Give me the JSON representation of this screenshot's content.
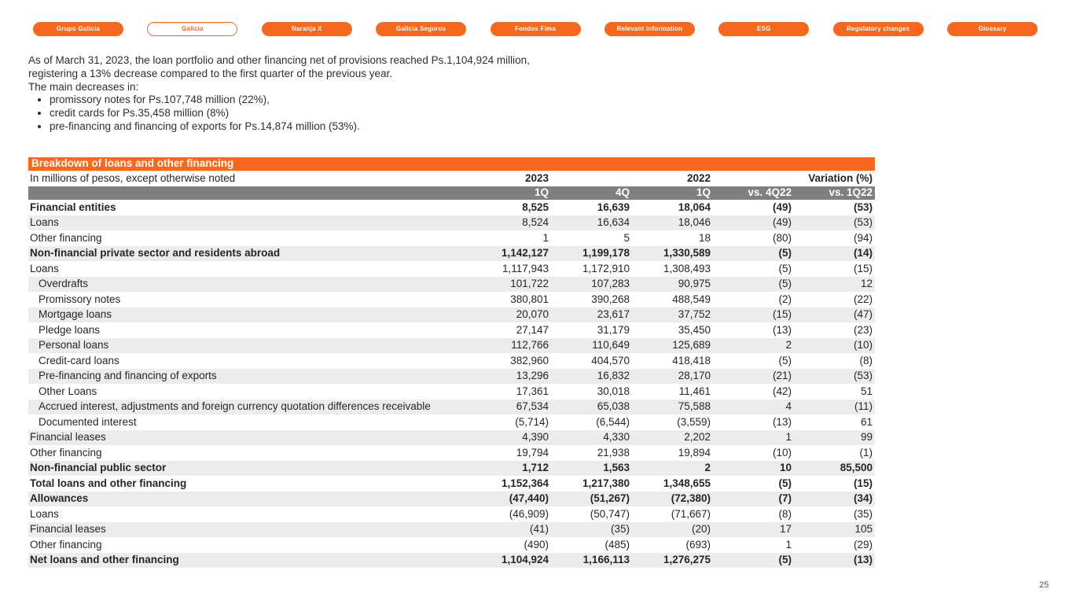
{
  "nav": {
    "items": [
      {
        "label": "Grupo Galicia",
        "active": false
      },
      {
        "label": "Galicia",
        "active": true
      },
      {
        "label": "Naranja X",
        "active": false
      },
      {
        "label": "Galicia Seguros",
        "active": false
      },
      {
        "label": "Fondos Fima",
        "active": false
      },
      {
        "label": "Relevant information",
        "active": false
      },
      {
        "label": "ESG",
        "active": false
      },
      {
        "label": "Regulatory changes",
        "active": false
      },
      {
        "label": "Glossary",
        "active": false
      }
    ]
  },
  "intro": {
    "line1": "As of March 31, 2023, the loan portfolio and other financing net of provisions reached Ps.1,104,924 million,",
    "line2": "registering a 13% decrease compared to the first quarter of the previous year.",
    "line3": "The main decreases in:",
    "bullets": [
      "promissory notes for Ps.107,748 million (22%),",
      "credit cards for Ps.35,458 million (8%)",
      "pre-financing and financing of exports for Ps.14,874 million (53%)."
    ]
  },
  "table": {
    "title": "Breakdown of loans and other financing",
    "subtitle": "In millions of pesos, except otherwise noted",
    "year_2023": "2023",
    "year_2022": "2022",
    "variation_label": "Variation (%)",
    "col_headers": [
      "1Q",
      "4Q",
      "1Q",
      "vs. 4Q22",
      "vs. 1Q22"
    ],
    "rows": [
      {
        "label": "Financial entities",
        "bold": true,
        "indent": 0,
        "values": [
          "8,525",
          "16,639",
          "18,064",
          "(49)",
          "(53)"
        ]
      },
      {
        "label": "Loans",
        "bold": false,
        "indent": 0,
        "values": [
          "8,524",
          "16,634",
          "18,046",
          "(49)",
          "(53)"
        ]
      },
      {
        "label": "Other financing",
        "bold": false,
        "indent": 0,
        "values": [
          "1",
          "5",
          "18",
          "(80)",
          "(94)"
        ]
      },
      {
        "label": "Non-financial private sector and residents abroad",
        "bold": true,
        "indent": 0,
        "values": [
          "1,142,127",
          "1,199,178",
          "1,330,589",
          "(5)",
          "(14)"
        ]
      },
      {
        "label": "Loans",
        "bold": false,
        "indent": 0,
        "values": [
          "1,117,943",
          "1,172,910",
          "1,308,493",
          "(5)",
          "(15)"
        ]
      },
      {
        "label": "Overdrafts",
        "bold": false,
        "indent": 1,
        "values": [
          "101,722",
          "107,283",
          "90,975",
          "(5)",
          "12"
        ]
      },
      {
        "label": "Promissory notes",
        "bold": false,
        "indent": 1,
        "values": [
          "380,801",
          "390,268",
          "488,549",
          "(2)",
          "(22)"
        ]
      },
      {
        "label": "Mortgage loans",
        "bold": false,
        "indent": 1,
        "values": [
          "20,070",
          "23,617",
          "37,752",
          "(15)",
          "(47)"
        ]
      },
      {
        "label": "Pledge loans",
        "bold": false,
        "indent": 1,
        "values": [
          "27,147",
          "31,179",
          "35,450",
          "(13)",
          "(23)"
        ]
      },
      {
        "label": "Personal loans",
        "bold": false,
        "indent": 1,
        "values": [
          "112,766",
          "110,649",
          "125,689",
          "2",
          "(10)"
        ]
      },
      {
        "label": "Credit-card loans",
        "bold": false,
        "indent": 1,
        "values": [
          "382,960",
          "404,570",
          "418,418",
          "(5)",
          "(8)"
        ]
      },
      {
        "label": "Pre-financing and financing of exports",
        "bold": false,
        "indent": 1,
        "values": [
          "13,296",
          "16,832",
          "28,170",
          "(21)",
          "(53)"
        ]
      },
      {
        "label": "Other Loans",
        "bold": false,
        "indent": 1,
        "values": [
          "17,361",
          "30,018",
          "11,461",
          "(42)",
          "51"
        ]
      },
      {
        "label": "Accrued interest, adjustments and foreign currency quotation differences receivable",
        "bold": false,
        "indent": 1,
        "values": [
          "67,534",
          "65,038",
          "75,588",
          "4",
          "(11)"
        ]
      },
      {
        "label": "Documented interest",
        "bold": false,
        "indent": 1,
        "values": [
          "(5,714)",
          "(6,544)",
          "(3,559)",
          "(13)",
          "61"
        ]
      },
      {
        "label": "Financial leases",
        "bold": false,
        "indent": 0,
        "values": [
          "4,390",
          "4,330",
          "2,202",
          "1",
          "99"
        ]
      },
      {
        "label": "Other financing",
        "bold": false,
        "indent": 0,
        "values": [
          "19,794",
          "21,938",
          "19,894",
          "(10)",
          "(1)"
        ]
      },
      {
        "label": "Non-financial public sector",
        "bold": true,
        "indent": 0,
        "values": [
          "1,712",
          "1,563",
          "2",
          "10",
          "85,500"
        ]
      },
      {
        "label": "Total loans and other financing",
        "bold": true,
        "indent": 0,
        "values": [
          "1,152,364",
          "1,217,380",
          "1,348,655",
          "(5)",
          "(15)"
        ]
      },
      {
        "label": "Allowances",
        "bold": true,
        "indent": 0,
        "values": [
          "(47,440)",
          "(51,267)",
          "(72,380)",
          "(7)",
          "(34)"
        ]
      },
      {
        "label": "Loans",
        "bold": false,
        "indent": 0,
        "values": [
          "(46,909)",
          "(50,747)",
          "(71,667)",
          "(8)",
          "(35)"
        ]
      },
      {
        "label": "Financial leases",
        "bold": false,
        "indent": 0,
        "values": [
          "(41)",
          "(35)",
          "(20)",
          "17",
          "105"
        ]
      },
      {
        "label": "Other financing",
        "bold": false,
        "indent": 0,
        "values": [
          "(490)",
          "(485)",
          "(693)",
          "1",
          "(29)"
        ]
      },
      {
        "label": "Net loans and other financing",
        "bold": true,
        "indent": 0,
        "values": [
          "1,104,924",
          "1,166,113",
          "1,276,275",
          "(5)",
          "(13)"
        ]
      }
    ]
  },
  "page_number": "25",
  "colors": {
    "accent_orange": "#F7671E",
    "header_gray": "#7f7f7f",
    "row_stripe": "#ececec"
  }
}
